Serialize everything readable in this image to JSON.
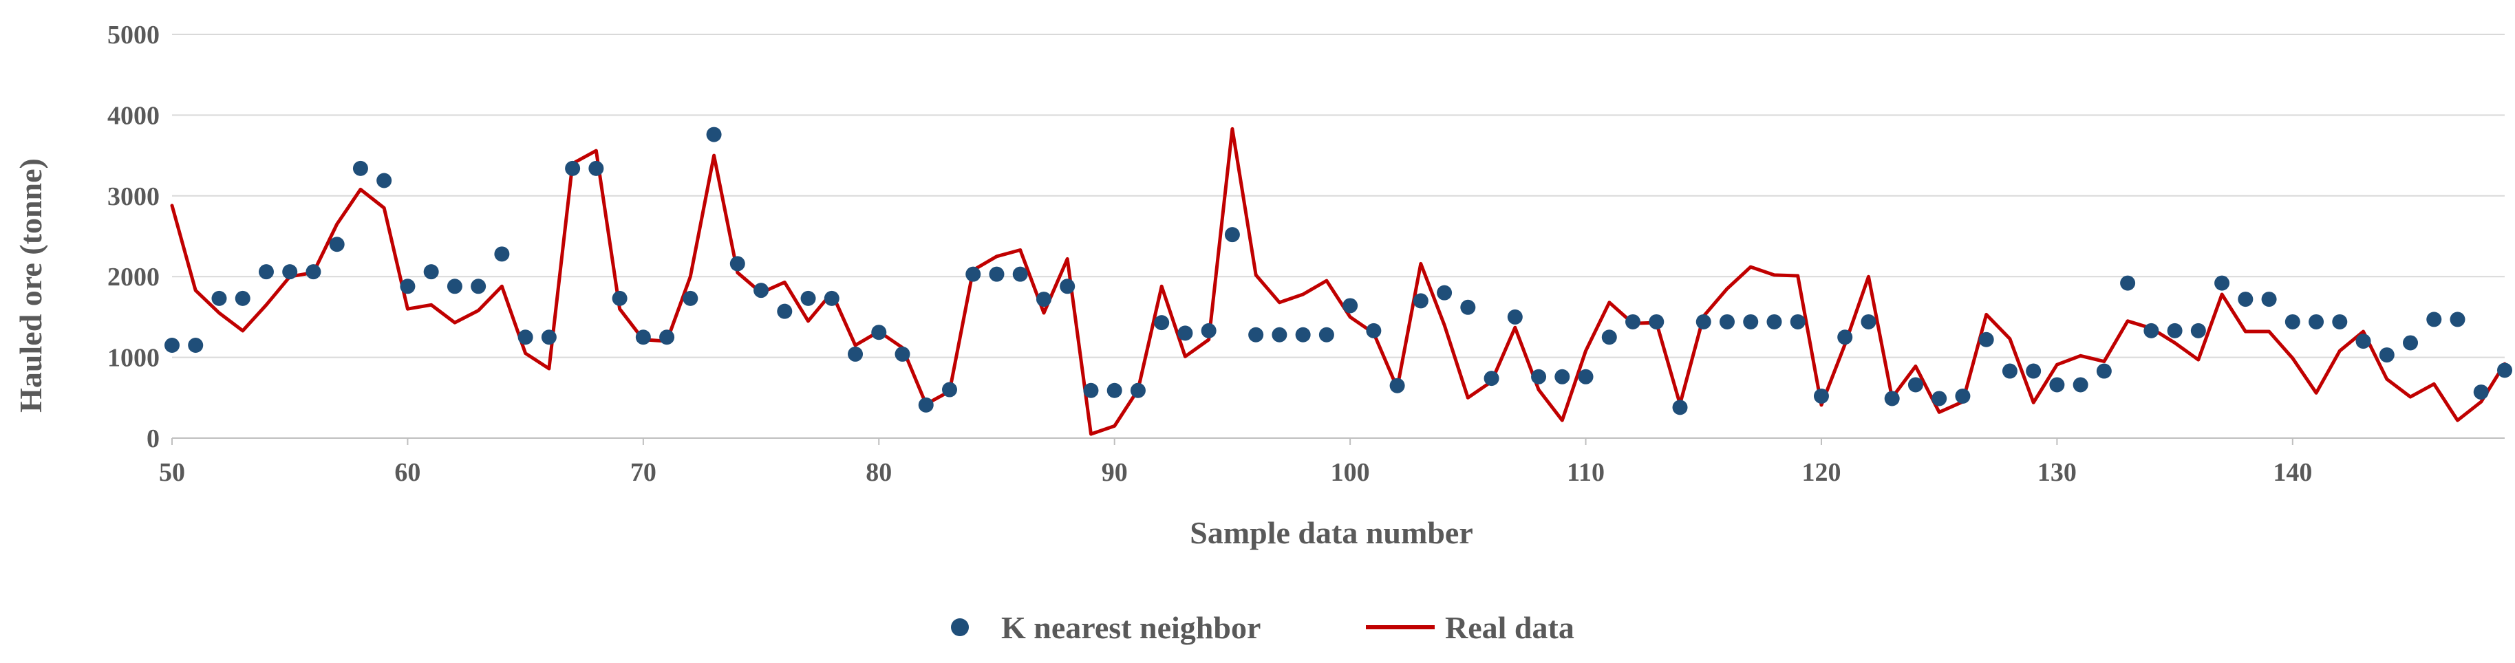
{
  "chart_data": {
    "type": "line",
    "title": "",
    "xlabel": "Sample data number",
    "ylabel": "Hauled ore (tonne)",
    "xlim": [
      50,
      149
    ],
    "ylim": [
      0,
      5000
    ],
    "x_ticks": [
      50,
      60,
      70,
      80,
      90,
      100,
      110,
      120,
      130,
      140
    ],
    "y_ticks": [
      0,
      1000,
      2000,
      3000,
      4000,
      5000
    ],
    "grid": "horizontal",
    "legend_position": "bottom",
    "x": [
      50,
      51,
      52,
      53,
      54,
      55,
      56,
      57,
      58,
      59,
      60,
      61,
      62,
      63,
      64,
      65,
      66,
      67,
      68,
      69,
      70,
      71,
      72,
      73,
      74,
      75,
      76,
      77,
      78,
      79,
      80,
      81,
      82,
      83,
      84,
      85,
      86,
      87,
      88,
      89,
      90,
      91,
      92,
      93,
      94,
      95,
      96,
      97,
      98,
      99,
      100,
      101,
      102,
      103,
      104,
      105,
      106,
      107,
      108,
      109,
      110,
      111,
      112,
      113,
      114,
      115,
      116,
      117,
      118,
      119,
      120,
      121,
      122,
      123,
      124,
      125,
      126,
      127,
      128,
      129,
      130,
      131,
      132,
      133,
      134,
      135,
      136,
      137,
      138,
      139,
      140,
      141,
      142,
      143,
      144,
      145,
      146,
      147,
      148,
      149
    ],
    "series": [
      {
        "name": "K nearest neighbor",
        "style": "scatter",
        "color": "#1f4e79",
        "values": [
          1150,
          1150,
          1730,
          1730,
          2060,
          2060,
          2060,
          2400,
          3340,
          3190,
          1880,
          2060,
          1880,
          1880,
          2280,
          1250,
          1250,
          3340,
          3340,
          1730,
          1250,
          1250,
          1730,
          3760,
          2160,
          1830,
          1570,
          1730,
          1730,
          1040,
          1310,
          1040,
          410,
          600,
          2030,
          2030,
          2030,
          1720,
          1880,
          590,
          590,
          590,
          1430,
          1300,
          1330,
          2520,
          1280,
          1280,
          1280,
          1280,
          1640,
          1330,
          650,
          1700,
          1800,
          1620,
          740,
          1500,
          760,
          760,
          760,
          1250,
          1440,
          1440,
          380,
          1440,
          1440,
          1440,
          1440,
          1440,
          520,
          1250,
          1440,
          490,
          660,
          490,
          520,
          1220,
          830,
          830,
          660,
          660,
          830,
          1920,
          1330,
          1330,
          1330,
          1920,
          1720,
          1720,
          1440,
          1440,
          1440,
          1200,
          1030,
          1180,
          1470,
          1470,
          570,
          840
        ]
      },
      {
        "name": "Real data",
        "style": "line",
        "color": "#c00000",
        "values": [
          2880,
          1830,
          1550,
          1330,
          1650,
          2000,
          2050,
          2650,
          3080,
          2850,
          1600,
          1650,
          1430,
          1580,
          1880,
          1050,
          860,
          3400,
          3560,
          1600,
          1220,
          1200,
          2000,
          3500,
          2050,
          1800,
          1930,
          1450,
          1800,
          1150,
          1320,
          1120,
          420,
          580,
          2080,
          2250,
          2330,
          1550,
          2220,
          50,
          150,
          600,
          1880,
          1010,
          1220,
          3830,
          2020,
          1680,
          1780,
          1950,
          1500,
          1300,
          620,
          2160,
          1400,
          500,
          700,
          1370,
          600,
          220,
          1080,
          1680,
          1420,
          1430,
          420,
          1510,
          1850,
          2120,
          2020,
          2010,
          410,
          1160,
          2000,
          500,
          890,
          320,
          450,
          1530,
          1230,
          440,
          910,
          1020,
          950,
          1450,
          1360,
          1180,
          970,
          1780,
          1320,
          1320,
          990,
          560,
          1080,
          1320,
          730,
          510,
          670,
          220,
          450,
          920
        ]
      }
    ]
  },
  "legend": {
    "items": [
      "K nearest neighbor",
      "Real data"
    ]
  },
  "axes": {
    "xlabel": "Sample data number",
    "ylabel": "Hauled ore (tonne)"
  }
}
